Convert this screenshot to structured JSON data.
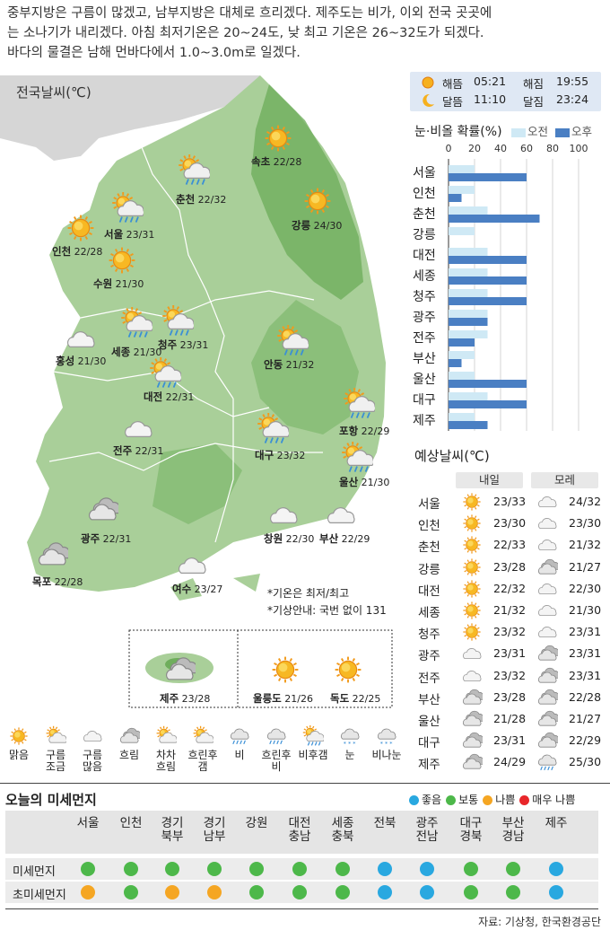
{
  "intro": [
    "중부지방은 구름이 많겠고, 남부지방은 대체로 흐리겠다. 제주도는 비가, 이외 전국 곳곳에",
    "는 소나기가 내리겠다. 아침 최저기온은 20~24도, 낮 최고 기온은 26~32도가 되겠다.",
    "바다의 물결은 남해 먼바다에서 1.0~3.0m로 일겠다."
  ],
  "map": {
    "title": "전국날씨(℃)",
    "cities": [
      {
        "name": "속초",
        "temp": "22/28",
        "icon": "sun"
      },
      {
        "name": "춘천",
        "temp": "22/32",
        "icon": "sun-rain"
      },
      {
        "name": "서울",
        "temp": "23/31",
        "icon": "sun-rain"
      },
      {
        "name": "강릉",
        "temp": "24/30",
        "icon": "sun"
      },
      {
        "name": "인천",
        "temp": "22/28",
        "icon": "sun"
      },
      {
        "name": "수원",
        "temp": "21/30",
        "icon": "sun"
      },
      {
        "name": "세종",
        "temp": "21/30",
        "icon": "sun-rain"
      },
      {
        "name": "청주",
        "temp": "23/31",
        "icon": "sun-rain"
      },
      {
        "name": "홍성",
        "temp": "21/30",
        "icon": "cloud"
      },
      {
        "name": "안동",
        "temp": "21/32",
        "icon": "sun-rain"
      },
      {
        "name": "대전",
        "temp": "22/31",
        "icon": "sun-rain"
      },
      {
        "name": "포항",
        "temp": "22/29",
        "icon": "sun-rain"
      },
      {
        "name": "전주",
        "temp": "22/31",
        "icon": "cloud"
      },
      {
        "name": "대구",
        "temp": "23/32",
        "icon": "sun-rain"
      },
      {
        "name": "울산",
        "temp": "21/30",
        "icon": "sun-rain"
      },
      {
        "name": "광주",
        "temp": "22/31",
        "icon": "overcast"
      },
      {
        "name": "창원",
        "temp": "22/30",
        "icon": "cloud"
      },
      {
        "name": "부산",
        "temp": "22/29",
        "icon": "cloud"
      },
      {
        "name": "목포",
        "temp": "22/28",
        "icon": "overcast"
      },
      {
        "name": "여수",
        "temp": "23/27",
        "icon": "cloud"
      },
      {
        "name": "제주",
        "temp": "23/28",
        "icon": "overcast"
      },
      {
        "name": "울릉도",
        "temp": "21/26",
        "icon": "sun"
      },
      {
        "name": "독도",
        "temp": "22/25",
        "icon": "sun"
      }
    ],
    "notes": [
      "*기온은 최저/최고",
      "*기상안내: 국번 없이 131"
    ]
  },
  "sun_moon": {
    "sunrise_label": "해뜸",
    "sunrise": "05:21",
    "sunset_label": "해짐",
    "sunset": "19:55",
    "moonrise_label": "달뜸",
    "moonrise": "11:10",
    "moonset_label": "달짐",
    "moonset": "23:24"
  },
  "precip": {
    "title": "눈·비올 확률(%)",
    "legend_am": "오전",
    "legend_pm": "오후"
  },
  "chart_data": {
    "type": "bar",
    "title": "눈·비올 확률(%)",
    "categories": [
      "서울",
      "인천",
      "춘천",
      "강릉",
      "대전",
      "세종",
      "청주",
      "광주",
      "전주",
      "부산",
      "울산",
      "대구",
      "제주"
    ],
    "ticks": [
      0,
      20,
      40,
      60,
      80,
      100
    ],
    "xlim": [
      0,
      100
    ],
    "series": [
      {
        "name": "오전",
        "color": "#cfe9f5",
        "values": [
          20,
          20,
          30,
          20,
          30,
          30,
          30,
          30,
          30,
          20,
          20,
          30,
          20
        ]
      },
      {
        "name": "오후",
        "color": "#4a7fc3",
        "values": [
          60,
          10,
          70,
          0,
          60,
          60,
          60,
          30,
          20,
          10,
          60,
          60,
          30
        ]
      }
    ]
  },
  "forecast": {
    "title": "예상날씨(℃)",
    "day1": "내일",
    "day2": "모레",
    "rows": [
      {
        "city": "서울",
        "t1": "23/33",
        "i1": "sun",
        "t2": "24/32",
        "i2": "cloud"
      },
      {
        "city": "인천",
        "t1": "23/30",
        "i1": "sun",
        "t2": "23/30",
        "i2": "cloud"
      },
      {
        "city": "춘천",
        "t1": "22/33",
        "i1": "sun",
        "t2": "21/32",
        "i2": "cloud"
      },
      {
        "city": "강릉",
        "t1": "23/28",
        "i1": "sun",
        "t2": "21/27",
        "i2": "overcast"
      },
      {
        "city": "대전",
        "t1": "22/32",
        "i1": "sun",
        "t2": "22/30",
        "i2": "cloud"
      },
      {
        "city": "세종",
        "t1": "21/32",
        "i1": "sun",
        "t2": "21/30",
        "i2": "cloud"
      },
      {
        "city": "청주",
        "t1": "23/32",
        "i1": "sun",
        "t2": "23/31",
        "i2": "cloud"
      },
      {
        "city": "광주",
        "t1": "23/31",
        "i1": "cloud",
        "t2": "23/31",
        "i2": "overcast"
      },
      {
        "city": "전주",
        "t1": "23/32",
        "i1": "cloud",
        "t2": "23/31",
        "i2": "overcast"
      },
      {
        "city": "부산",
        "t1": "23/28",
        "i1": "overcast",
        "t2": "22/28",
        "i2": "overcast"
      },
      {
        "city": "울산",
        "t1": "21/28",
        "i1": "overcast",
        "t2": "21/27",
        "i2": "overcast"
      },
      {
        "city": "대구",
        "t1": "23/31",
        "i1": "overcast",
        "t2": "22/29",
        "i2": "overcast"
      },
      {
        "city": "제주",
        "t1": "24/29",
        "i1": "overcast",
        "t2": "25/30",
        "i2": "rain"
      }
    ]
  },
  "legend": [
    {
      "label": "맑음",
      "icon": "sun"
    },
    {
      "label": "구름\n조금",
      "icon": "sun-cloud"
    },
    {
      "label": "구름\n많음",
      "icon": "cloud"
    },
    {
      "label": "흐림",
      "icon": "overcast"
    },
    {
      "label": "차차\n흐림",
      "icon": "sun-cloud"
    },
    {
      "label": "흐린후\n갬",
      "icon": "sun-cloud"
    },
    {
      "label": "비",
      "icon": "rain"
    },
    {
      "label": "흐린후\n비",
      "icon": "rain"
    },
    {
      "label": "비후갬",
      "icon": "sun-rain"
    },
    {
      "label": "눈",
      "icon": "snow"
    },
    {
      "label": "비나눈",
      "icon": "snow"
    }
  ],
  "dust": {
    "title": "오늘의 미세먼지",
    "levels": [
      {
        "label": "좋음",
        "color": "#29a8e0"
      },
      {
        "label": "보통",
        "color": "#4db84a"
      },
      {
        "label": "나쁨",
        "color": "#f5a623"
      },
      {
        "label": "매우 나쁨",
        "color": "#e8262a"
      }
    ],
    "regions": [
      "서울",
      "인천",
      "경기\n북부",
      "경기\n남부",
      "강원",
      "대전\n충남",
      "세종\n충북",
      "전북",
      "광주\n전남",
      "대구\n경북",
      "부산\n경남",
      "제주"
    ],
    "rows": [
      {
        "label": "미세먼지",
        "values": [
          1,
          1,
          1,
          1,
          1,
          1,
          1,
          0,
          0,
          1,
          1,
          0
        ]
      },
      {
        "label": "초미세먼지",
        "values": [
          2,
          1,
          2,
          2,
          1,
          1,
          1,
          0,
          0,
          1,
          1,
          0
        ]
      }
    ]
  },
  "source": "자료: 기상청, 한국환경공단"
}
